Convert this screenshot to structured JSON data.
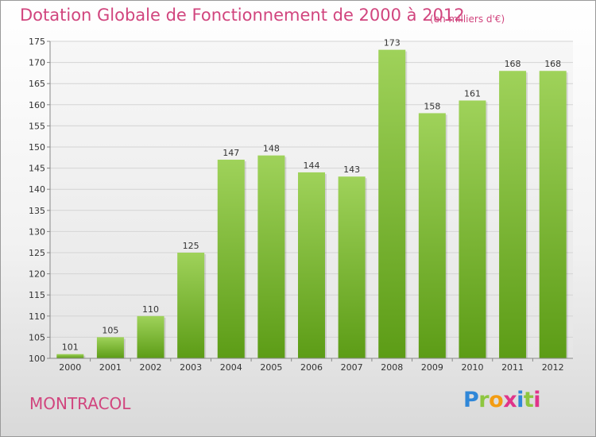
{
  "header": {
    "title": "Dotation Globale de Fonctionnement de 2000 à 2012",
    "subtitle": "(en milliers d'€)"
  },
  "footer": {
    "commune": "MONTRACOL",
    "logo": [
      "P",
      "r",
      "o",
      "x",
      "i",
      "t",
      "i"
    ]
  },
  "colors": {
    "title": "#d1457e",
    "bar_top": "#9fd25a",
    "bar_bottom": "#5c9c16"
  },
  "chart_data": {
    "type": "bar",
    "categories": [
      "2000",
      "2001",
      "2002",
      "2003",
      "2004",
      "2005",
      "2006",
      "2007",
      "2008",
      "2009",
      "2010",
      "2011",
      "2012"
    ],
    "values": [
      101,
      105,
      110,
      125,
      147,
      148,
      144,
      143,
      173,
      158,
      161,
      168,
      168
    ],
    "ylim": [
      100,
      175
    ],
    "yticks": [
      100,
      105,
      110,
      115,
      120,
      125,
      130,
      135,
      140,
      145,
      150,
      155,
      160,
      165,
      170,
      175
    ],
    "grid": true,
    "legend": "none"
  }
}
